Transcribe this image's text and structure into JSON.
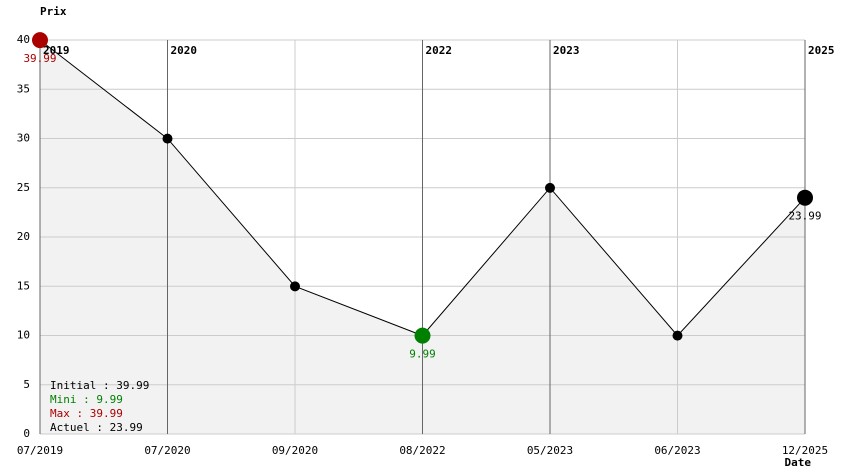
{
  "chart_data": {
    "type": "line",
    "y_label": "Prix",
    "x_label": "Date",
    "categories": [
      "07/2019",
      "07/2020",
      "09/2020",
      "08/2022",
      "05/2023",
      "06/2023",
      "12/2025"
    ],
    "values": [
      39.99,
      29.99,
      14.99,
      9.99,
      24.99,
      9.99,
      23.99
    ],
    "value_labels": [
      "39.99",
      null,
      null,
      "9.99",
      null,
      null,
      "23.99"
    ],
    "point_colors": [
      "#aa0000",
      "#000000",
      "#000000",
      "#008000",
      "#000000",
      "#000000",
      "#000000"
    ],
    "year_labels": [
      "2019",
      "2020",
      null,
      "2022",
      "2023",
      null,
      "2025"
    ],
    "ylim": [
      0,
      40
    ],
    "yticks": [
      0,
      5,
      10,
      15,
      20,
      25,
      30,
      35,
      40
    ],
    "grid": true,
    "color": "#000000",
    "area_color": "#f2f2f2",
    "stats": [
      {
        "text": "Initial : 39.99",
        "color": "#000000"
      },
      {
        "text": "Mini : 9.99",
        "color": "#008000"
      },
      {
        "text": "Max : 39.99",
        "color": "#aa0000"
      },
      {
        "text": "Actuel : 23.99",
        "color": "#000000"
      }
    ]
  }
}
